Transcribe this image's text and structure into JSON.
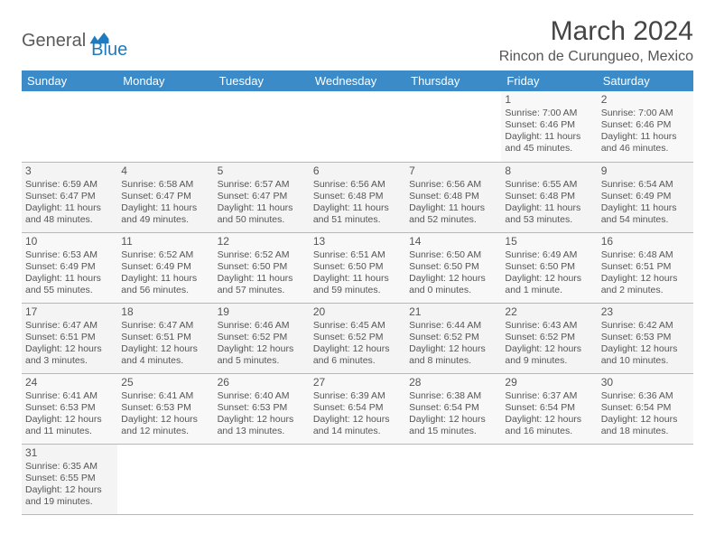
{
  "logo": {
    "part1": "General",
    "part2": "Blue"
  },
  "title": "March 2024",
  "location": "Rincon de Curungueo, Mexico",
  "colors": {
    "header_bg": "#3b8bc8",
    "header_text": "#ffffff",
    "logo_gray": "#5a5a5a",
    "logo_blue": "#1f7bbf",
    "cell_text": "#555555",
    "border": "#b8b8b8"
  },
  "weekdays": [
    "Sunday",
    "Monday",
    "Tuesday",
    "Wednesday",
    "Thursday",
    "Friday",
    "Saturday"
  ],
  "weeks": [
    [
      null,
      null,
      null,
      null,
      null,
      {
        "n": "1",
        "sr": "Sunrise: 7:00 AM",
        "ss": "Sunset: 6:46 PM",
        "dl": "Daylight: 11 hours and 45 minutes."
      },
      {
        "n": "2",
        "sr": "Sunrise: 7:00 AM",
        "ss": "Sunset: 6:46 PM",
        "dl": "Daylight: 11 hours and 46 minutes."
      }
    ],
    [
      {
        "n": "3",
        "sr": "Sunrise: 6:59 AM",
        "ss": "Sunset: 6:47 PM",
        "dl": "Daylight: 11 hours and 48 minutes."
      },
      {
        "n": "4",
        "sr": "Sunrise: 6:58 AM",
        "ss": "Sunset: 6:47 PM",
        "dl": "Daylight: 11 hours and 49 minutes."
      },
      {
        "n": "5",
        "sr": "Sunrise: 6:57 AM",
        "ss": "Sunset: 6:47 PM",
        "dl": "Daylight: 11 hours and 50 minutes."
      },
      {
        "n": "6",
        "sr": "Sunrise: 6:56 AM",
        "ss": "Sunset: 6:48 PM",
        "dl": "Daylight: 11 hours and 51 minutes."
      },
      {
        "n": "7",
        "sr": "Sunrise: 6:56 AM",
        "ss": "Sunset: 6:48 PM",
        "dl": "Daylight: 11 hours and 52 minutes."
      },
      {
        "n": "8",
        "sr": "Sunrise: 6:55 AM",
        "ss": "Sunset: 6:48 PM",
        "dl": "Daylight: 11 hours and 53 minutes."
      },
      {
        "n": "9",
        "sr": "Sunrise: 6:54 AM",
        "ss": "Sunset: 6:49 PM",
        "dl": "Daylight: 11 hours and 54 minutes."
      }
    ],
    [
      {
        "n": "10",
        "sr": "Sunrise: 6:53 AM",
        "ss": "Sunset: 6:49 PM",
        "dl": "Daylight: 11 hours and 55 minutes."
      },
      {
        "n": "11",
        "sr": "Sunrise: 6:52 AM",
        "ss": "Sunset: 6:49 PM",
        "dl": "Daylight: 11 hours and 56 minutes."
      },
      {
        "n": "12",
        "sr": "Sunrise: 6:52 AM",
        "ss": "Sunset: 6:50 PM",
        "dl": "Daylight: 11 hours and 57 minutes."
      },
      {
        "n": "13",
        "sr": "Sunrise: 6:51 AM",
        "ss": "Sunset: 6:50 PM",
        "dl": "Daylight: 11 hours and 59 minutes."
      },
      {
        "n": "14",
        "sr": "Sunrise: 6:50 AM",
        "ss": "Sunset: 6:50 PM",
        "dl": "Daylight: 12 hours and 0 minutes."
      },
      {
        "n": "15",
        "sr": "Sunrise: 6:49 AM",
        "ss": "Sunset: 6:50 PM",
        "dl": "Daylight: 12 hours and 1 minute."
      },
      {
        "n": "16",
        "sr": "Sunrise: 6:48 AM",
        "ss": "Sunset: 6:51 PM",
        "dl": "Daylight: 12 hours and 2 minutes."
      }
    ],
    [
      {
        "n": "17",
        "sr": "Sunrise: 6:47 AM",
        "ss": "Sunset: 6:51 PM",
        "dl": "Daylight: 12 hours and 3 minutes."
      },
      {
        "n": "18",
        "sr": "Sunrise: 6:47 AM",
        "ss": "Sunset: 6:51 PM",
        "dl": "Daylight: 12 hours and 4 minutes."
      },
      {
        "n": "19",
        "sr": "Sunrise: 6:46 AM",
        "ss": "Sunset: 6:52 PM",
        "dl": "Daylight: 12 hours and 5 minutes."
      },
      {
        "n": "20",
        "sr": "Sunrise: 6:45 AM",
        "ss": "Sunset: 6:52 PM",
        "dl": "Daylight: 12 hours and 6 minutes."
      },
      {
        "n": "21",
        "sr": "Sunrise: 6:44 AM",
        "ss": "Sunset: 6:52 PM",
        "dl": "Daylight: 12 hours and 8 minutes."
      },
      {
        "n": "22",
        "sr": "Sunrise: 6:43 AM",
        "ss": "Sunset: 6:52 PM",
        "dl": "Daylight: 12 hours and 9 minutes."
      },
      {
        "n": "23",
        "sr": "Sunrise: 6:42 AM",
        "ss": "Sunset: 6:53 PM",
        "dl": "Daylight: 12 hours and 10 minutes."
      }
    ],
    [
      {
        "n": "24",
        "sr": "Sunrise: 6:41 AM",
        "ss": "Sunset: 6:53 PM",
        "dl": "Daylight: 12 hours and 11 minutes."
      },
      {
        "n": "25",
        "sr": "Sunrise: 6:41 AM",
        "ss": "Sunset: 6:53 PM",
        "dl": "Daylight: 12 hours and 12 minutes."
      },
      {
        "n": "26",
        "sr": "Sunrise: 6:40 AM",
        "ss": "Sunset: 6:53 PM",
        "dl": "Daylight: 12 hours and 13 minutes."
      },
      {
        "n": "27",
        "sr": "Sunrise: 6:39 AM",
        "ss": "Sunset: 6:54 PM",
        "dl": "Daylight: 12 hours and 14 minutes."
      },
      {
        "n": "28",
        "sr": "Sunrise: 6:38 AM",
        "ss": "Sunset: 6:54 PM",
        "dl": "Daylight: 12 hours and 15 minutes."
      },
      {
        "n": "29",
        "sr": "Sunrise: 6:37 AM",
        "ss": "Sunset: 6:54 PM",
        "dl": "Daylight: 12 hours and 16 minutes."
      },
      {
        "n": "30",
        "sr": "Sunrise: 6:36 AM",
        "ss": "Sunset: 6:54 PM",
        "dl": "Daylight: 12 hours and 18 minutes."
      }
    ],
    [
      {
        "n": "31",
        "sr": "Sunrise: 6:35 AM",
        "ss": "Sunset: 6:55 PM",
        "dl": "Daylight: 12 hours and 19 minutes."
      },
      null,
      null,
      null,
      null,
      null,
      null
    ]
  ]
}
